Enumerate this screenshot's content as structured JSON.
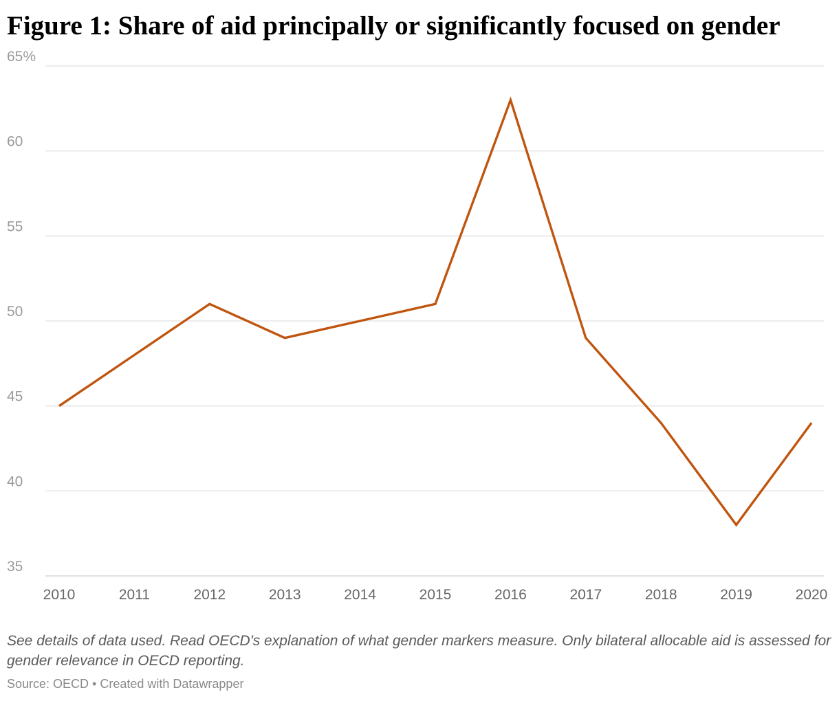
{
  "title": "Figure 1: Share of aid principally or significantly focused on gender",
  "note": "See details of data used. Read OECD's explanation of what gender markers measure. Only bilateral allocable aid is assessed for gender relevance in OECD reporting.",
  "source": "Source: OECD • Created with Datawrapper",
  "chart_data": {
    "type": "line",
    "title": "Figure 1: Share of aid principally or significantly focused on gender",
    "x": [
      2010,
      2011,
      2012,
      2013,
      2014,
      2015,
      2016,
      2017,
      2018,
      2019,
      2020
    ],
    "series": [
      {
        "values": [
          45,
          48,
          51,
          49,
          50,
          51,
          63,
          49,
          44,
          38,
          44
        ],
        "color": "#c0550f"
      }
    ],
    "ylim": [
      35,
      65
    ],
    "y_ticks": [
      35,
      40,
      45,
      50,
      55,
      60,
      65
    ],
    "y_tick_labels": [
      "35",
      "40",
      "45",
      "50",
      "55",
      "60",
      "65%"
    ],
    "x_tick_labels": [
      "2010",
      "2011",
      "2012",
      "2013",
      "2014",
      "2015",
      "2016",
      "2017",
      "2018",
      "2019",
      "2020"
    ],
    "grid": true,
    "legend": "none"
  }
}
